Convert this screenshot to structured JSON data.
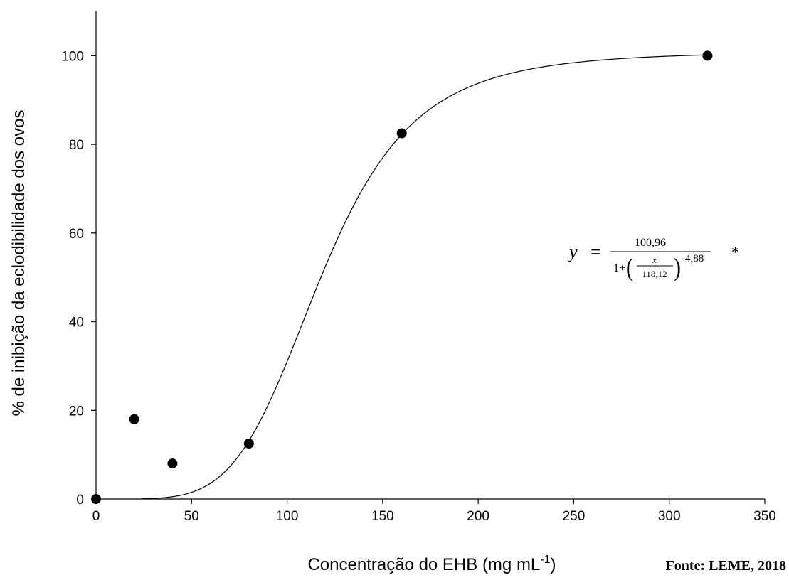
{
  "chart_data": {
    "type": "scatter",
    "title": "",
    "xlabel": "Concentração do EHB (mg mL",
    "xlabel_superscript": "-1",
    "xlabel_suffix": ")",
    "ylabel": "% de inibição da eclodibilidade dos ovos",
    "xlim": [
      0,
      350
    ],
    "ylim": [
      0,
      110
    ],
    "x_ticks": [
      0,
      50,
      100,
      150,
      200,
      250,
      300,
      350
    ],
    "y_ticks": [
      0,
      20,
      40,
      60,
      80,
      100
    ],
    "grid": false,
    "legend": "none",
    "points": [
      {
        "x": 0,
        "y": 0
      },
      {
        "x": 20,
        "y": 18
      },
      {
        "x": 40,
        "y": 8
      },
      {
        "x": 80,
        "y": 12.5
      },
      {
        "x": 160,
        "y": 82.5
      },
      {
        "x": 320,
        "y": 100
      }
    ],
    "fit": {
      "a": 100.96,
      "x0": 118.12,
      "b": -4.88,
      "x_start": 24,
      "x_end": 320
    },
    "annotation": {
      "lhs": "y",
      "equals": "=",
      "numerator": "100,96",
      "denominator_prefix": "1+",
      "inner_numerator": "x",
      "inner_denominator": "118,12",
      "exponent": "-4,88",
      "mark": "*"
    }
  },
  "source_note": "Fonte: LEME, 2018"
}
